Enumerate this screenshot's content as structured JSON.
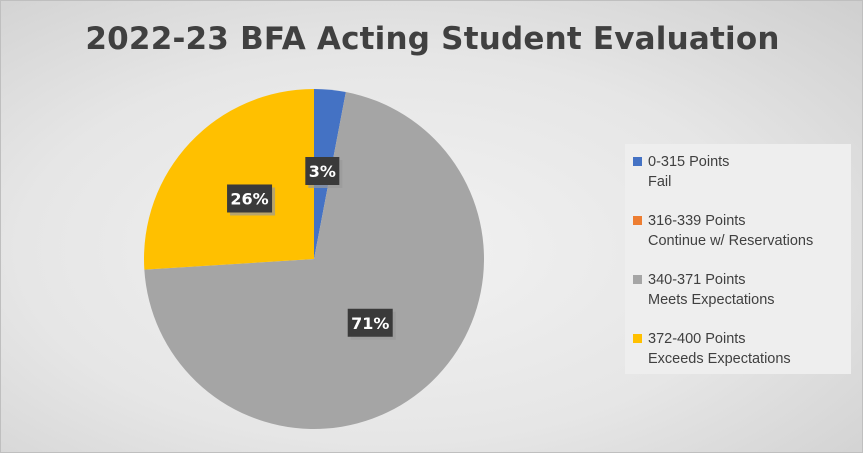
{
  "chart_data": {
    "type": "pie",
    "title": "2022-23 BFA Acting Student Evaluation",
    "slices": [
      {
        "label_lines": [
          "0-315 Points",
          "Fail"
        ],
        "value": 3,
        "data_label": "3%",
        "color": "#4472C4"
      },
      {
        "label_lines": [
          "316-339 Points",
          "Continue w/ Reservations"
        ],
        "value": 0,
        "data_label": "",
        "color": "#ED7D31"
      },
      {
        "label_lines": [
          "340-371 Points",
          "Meets Expectations"
        ],
        "value": 71,
        "data_label": "71%",
        "color": "#A5A5A5"
      },
      {
        "label_lines": [
          "372-400 Points",
          "Exceeds Expectations"
        ],
        "value": 26,
        "data_label": "26%",
        "color": "#FFC000"
      }
    ],
    "legend_position": "right"
  }
}
